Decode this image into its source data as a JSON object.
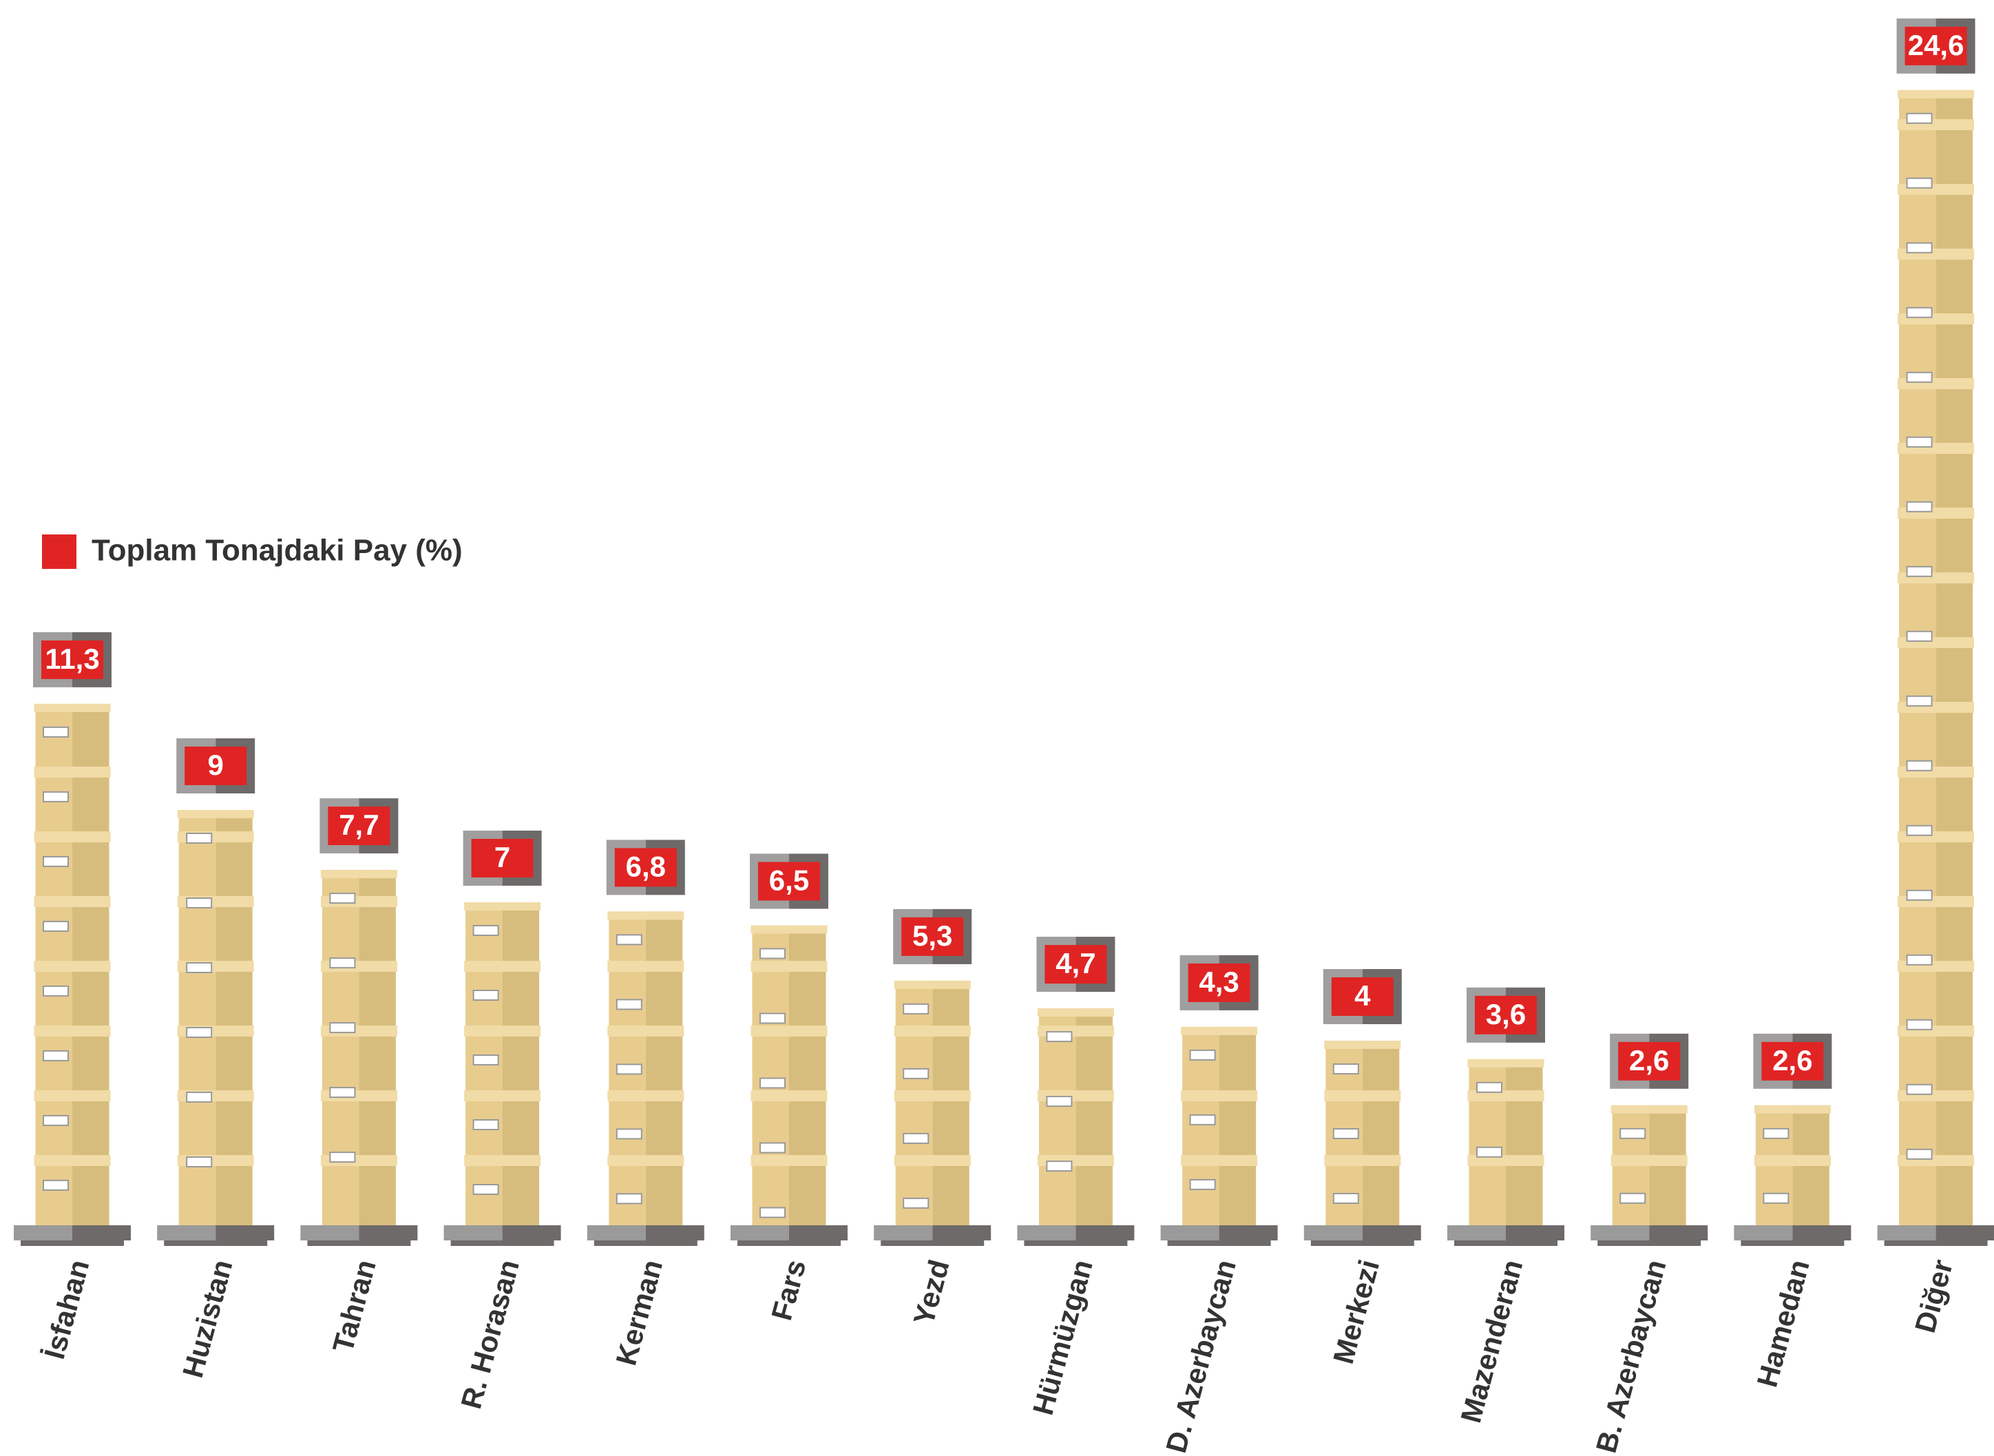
{
  "chart_data": {
    "type": "bar",
    "categories": [
      "İsfahan",
      "Huzistan",
      "Tahran",
      "R. Horasan",
      "Kerman",
      "Fars",
      "Yezd",
      "Hürmüzgan",
      "D. Azerbaycan",
      "Merkezi",
      "Mazenderan",
      "B. Azerbaycan",
      "Hamedan",
      "Diğer"
    ],
    "series": [
      {
        "name": "Toplam Tonajdaki Pay (%)",
        "color": "#e02424",
        "values": [
          11.3,
          9,
          7.7,
          7,
          6.8,
          6.5,
          5.3,
          4.7,
          4.3,
          4,
          3.6,
          2.6,
          2.6,
          24.6
        ],
        "value_labels": [
          "11,3",
          "9",
          "7,7",
          "7",
          "6,8",
          "6,5",
          "5,3",
          "4,7",
          "4,3",
          "4",
          "3,6",
          "2,6",
          "2,6",
          "24,6"
        ]
      }
    ]
  }
}
